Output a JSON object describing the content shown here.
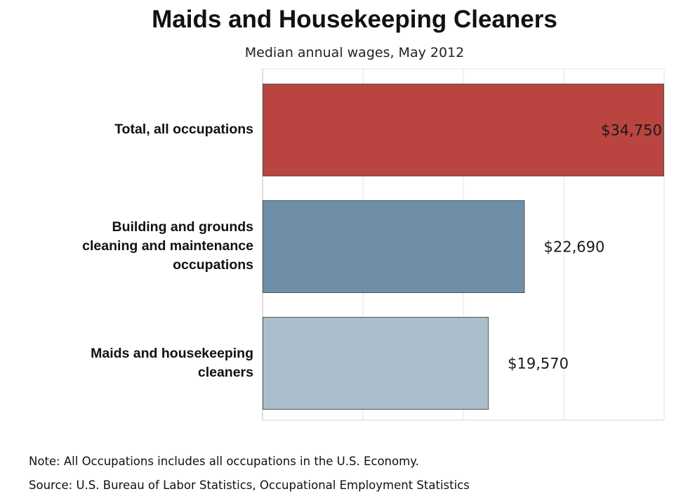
{
  "chart_data": {
    "type": "bar",
    "orientation": "horizontal",
    "title": "Maids and Housekeeping Cleaners",
    "subtitle": "Median annual wages, May 2012",
    "categories": [
      "Total, all occupations",
      "Building and grounds cleaning and maintenance occupations",
      "Maids and housekeeping cleaners"
    ],
    "category_label_lines": [
      [
        "Total, all occupations"
      ],
      [
        "Building and grounds",
        "cleaning and maintenance",
        "occupations"
      ],
      [
        "Maids and housekeeping",
        "cleaners"
      ]
    ],
    "values": [
      34750,
      22690,
      19570
    ],
    "value_labels": [
      "$34,750",
      "$22,690",
      "$19,570"
    ],
    "bar_colors": [
      "#b94440",
      "#6e8fa7",
      "#abbecb"
    ],
    "xlim": [
      0,
      34750
    ],
    "grid": true,
    "legend": "none",
    "xlabel": "",
    "ylabel": ""
  },
  "notes": {
    "note": "Note: All Occupations includes all occupations in the U.S. Economy.",
    "source": "Source: U.S. Bureau of Labor Statistics, Occupational Employment Statistics"
  }
}
